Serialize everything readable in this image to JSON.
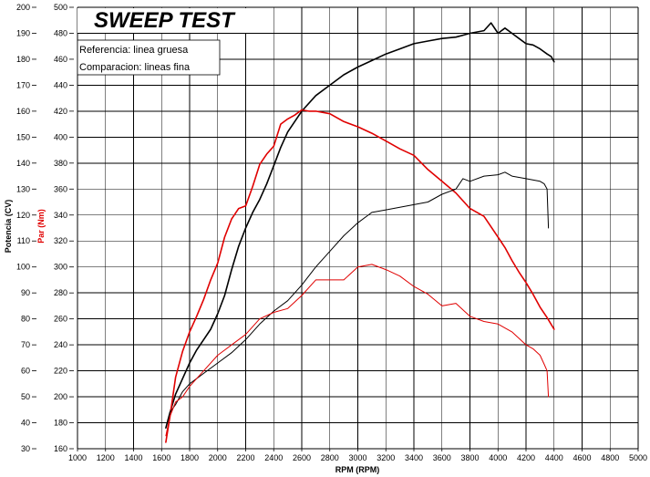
{
  "chart_data": {
    "type": "line",
    "title": "SWEEP TEST",
    "xlabel": "RPM (RPM)",
    "ylabel_left": "Potencia (CV)",
    "ylabel_right": "Par (Nm)",
    "xlim": [
      1000,
      5000
    ],
    "ylim_left": [
      30,
      200
    ],
    "ylim_right": [
      160,
      500
    ],
    "x_ticks": [
      "1000",
      "1200",
      "1400",
      "1600",
      "1800",
      "2000",
      "2200",
      "2400",
      "2600",
      "2800",
      "3000",
      "3200",
      "3400",
      "3600",
      "3800",
      "4000",
      "4200",
      "4400",
      "4600",
      "4800",
      "5000"
    ],
    "y_left_ticks": [
      "30",
      "40",
      "50",
      "60",
      "70",
      "80",
      "90",
      "100",
      "110",
      "120",
      "130",
      "140",
      "150",
      "160",
      "170",
      "180",
      "190",
      "200"
    ],
    "y_right_ticks": [
      "160",
      "180",
      "200",
      "220",
      "240",
      "260",
      "280",
      "300",
      "320",
      "340",
      "360",
      "380",
      "400",
      "420",
      "440",
      "460",
      "480",
      "500"
    ],
    "legend": [
      "Referencia: linea gruesa",
      "Comparacion: lineas fina"
    ],
    "series": [
      {
        "name": "Referencia Potencia (CV)",
        "axis": "left",
        "color": "#000000",
        "width": 1.6,
        "x": [
          1630,
          1660,
          1700,
          1750,
          1800,
          1850,
          1900,
          1950,
          2000,
          2050,
          2100,
          2150,
          2200,
          2250,
          2300,
          2350,
          2400,
          2450,
          2500,
          2600,
          2700,
          2800,
          2900,
          3000,
          3100,
          3200,
          3300,
          3400,
          3500,
          3600,
          3700,
          3800,
          3900,
          3950,
          4000,
          4050,
          4100,
          4150,
          4200,
          4250,
          4300,
          4350,
          4380,
          4400
        ],
        "y": [
          38,
          44,
          51,
          57,
          63,
          68,
          72,
          76,
          82,
          89,
          99,
          108,
          115,
          121,
          126,
          132,
          139,
          146,
          152,
          160,
          166,
          170,
          174,
          177,
          179.5,
          182,
          184,
          186,
          187,
          188,
          188.5,
          190,
          191,
          194,
          190,
          192,
          190,
          188,
          186,
          185.5,
          184,
          182,
          181,
          179
        ]
      },
      {
        "name": "Referencia Par (Nm)",
        "axis": "right",
        "color": "#e00000",
        "width": 1.6,
        "x": [
          1630,
          1660,
          1700,
          1750,
          1800,
          1850,
          1900,
          1950,
          2000,
          2050,
          2100,
          2150,
          2200,
          2250,
          2300,
          2350,
          2400,
          2450,
          2500,
          2550,
          2600,
          2650,
          2700,
          2800,
          2900,
          3000,
          3100,
          3200,
          3300,
          3400,
          3500,
          3600,
          3700,
          3800,
          3900,
          4000,
          4050,
          4100,
          4150,
          4200,
          4250,
          4300,
          4350,
          4400
        ],
        "y": [
          165,
          185,
          215,
          235,
          250,
          262,
          275,
          290,
          303,
          323,
          337,
          345,
          347,
          362,
          379,
          387,
          393,
          410,
          414,
          417,
          421,
          420,
          420,
          418,
          412,
          408,
          403,
          397,
          391,
          386,
          375,
          366,
          357,
          345,
          339,
          323,
          315,
          305,
          296,
          288,
          279,
          269,
          261,
          252
        ]
      },
      {
        "name": "Comparacion Potencia (CV)",
        "axis": "left",
        "color": "#000000",
        "width": 1.0,
        "x": [
          1630,
          1660,
          1700,
          1750,
          1800,
          1900,
          2000,
          2100,
          2200,
          2300,
          2400,
          2500,
          2600,
          2700,
          2800,
          2900,
          3000,
          3100,
          3200,
          3300,
          3400,
          3500,
          3600,
          3700,
          3750,
          3800,
          3900,
          4000,
          4050,
          4100,
          4200,
          4300,
          4330,
          4350,
          4360
        ],
        "y": [
          38,
          44,
          47,
          52,
          55,
          59,
          63,
          67,
          72,
          78,
          83,
          87,
          93,
          100,
          106,
          112,
          117,
          121,
          122,
          123,
          124,
          125,
          128,
          130,
          134,
          133,
          135,
          135.5,
          136.5,
          135,
          134,
          133,
          132,
          130,
          115
        ]
      },
      {
        "name": "Comparacion Par (Nm)",
        "axis": "right",
        "color": "#e00000",
        "width": 1.0,
        "x": [
          1630,
          1660,
          1700,
          1750,
          1800,
          1900,
          2000,
          2100,
          2200,
          2300,
          2400,
          2500,
          2600,
          2700,
          2800,
          2900,
          3000,
          3100,
          3200,
          3300,
          3400,
          3500,
          3600,
          3700,
          3800,
          3900,
          4000,
          4100,
          4200,
          4250,
          4300,
          4330,
          4350,
          4360
        ],
        "y": [
          170,
          185,
          196,
          200,
          208,
          220,
          232,
          240,
          248,
          260,
          265,
          268,
          278,
          290,
          290,
          290,
          300,
          302,
          298,
          293,
          285,
          279,
          270,
          272,
          262,
          258,
          256,
          250,
          240,
          237,
          232,
          225,
          220,
          200
        ]
      }
    ]
  }
}
